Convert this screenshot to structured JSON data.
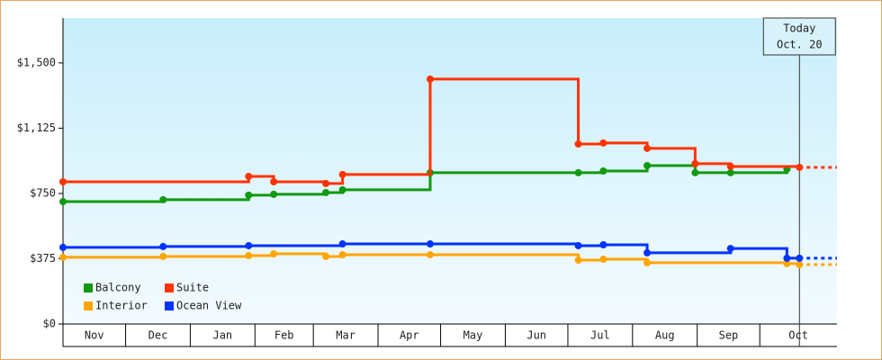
{
  "chart_data": {
    "type": "step-line",
    "xlim": [
      0,
      371
    ],
    "xticks": [
      {
        "value": 0,
        "label": "Nov"
      },
      {
        "value": 30,
        "label": "Dec"
      },
      {
        "value": 61,
        "label": "Jan"
      },
      {
        "value": 92,
        "label": "Feb"
      },
      {
        "value": 120,
        "label": "Mar"
      },
      {
        "value": 151,
        "label": "Apr"
      },
      {
        "value": 181,
        "label": "May"
      },
      {
        "value": 212,
        "label": "Jun"
      },
      {
        "value": 242,
        "label": "Jul"
      },
      {
        "value": 273,
        "label": "Aug"
      },
      {
        "value": 304,
        "label": "Sep"
      },
      {
        "value": 334,
        "label": "Oct"
      }
    ],
    "ylim": [
      0,
      1758
    ],
    "yticks": [
      {
        "value": 0,
        "label": "$0"
      },
      {
        "value": 375,
        "label": "$375"
      },
      {
        "value": 750,
        "label": "$750"
      },
      {
        "value": 1125,
        "label": "$1,125"
      },
      {
        "value": 1500,
        "label": "$1,500"
      }
    ],
    "annotation": {
      "x": 353,
      "lines": [
        "Today",
        "Oct. 20"
      ]
    },
    "series": [
      {
        "name": "Balcony",
        "color": "#119911",
        "x": [
          0,
          48,
          89,
          101,
          126,
          134,
          176,
          247,
          259,
          280,
          303,
          320,
          347
        ],
        "values": [
          703,
          714,
          740,
          745,
          755,
          771,
          869,
          869,
          879,
          910,
          869,
          869,
          890
        ]
      },
      {
        "name": "Suite",
        "color": "#ff3300",
        "x": [
          0,
          89,
          101,
          126,
          134,
          176,
          247,
          259,
          280,
          303,
          320,
          353
        ],
        "values": [
          817,
          848,
          817,
          807,
          859,
          1407,
          1034,
          1040,
          1009,
          921,
          905,
          900
        ]
      },
      {
        "name": "Interior",
        "color": "#ffa500",
        "x": [
          0,
          48,
          89,
          101,
          126,
          134,
          176,
          247,
          259,
          280,
          347,
          353
        ],
        "values": [
          383,
          388,
          393,
          403,
          388,
          398,
          398,
          367,
          372,
          352,
          347,
          341
        ]
      },
      {
        "name": "Ocean View",
        "color": "#0033ff",
        "x": [
          0,
          48,
          89,
          134,
          176,
          247,
          259,
          280,
          320,
          347,
          353
        ],
        "values": [
          440,
          445,
          450,
          460,
          460,
          450,
          455,
          409,
          434,
          378,
          378
        ]
      }
    ]
  }
}
